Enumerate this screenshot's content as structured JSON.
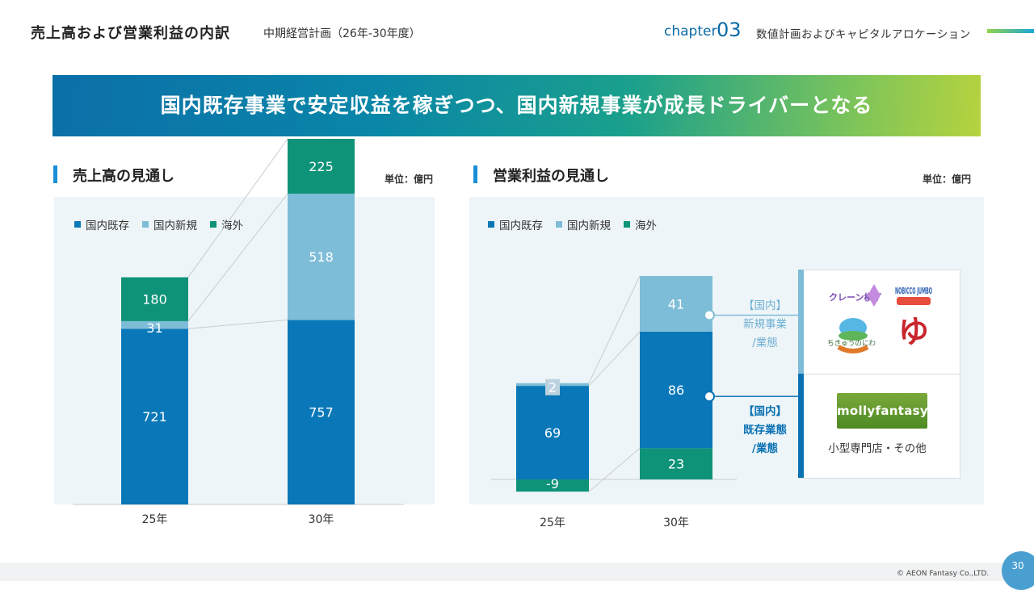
{
  "header": {
    "title": "売上高および営業利益の内訳",
    "subtitle": "中期経営計画（26年-30年度）",
    "chapter_word": "chapter",
    "chapter_num": "03",
    "section": "数値計画およびキャピタルアロケーション"
  },
  "banner": {
    "text": "国内既存事業で安定収益を稼ぎつつ、国内新規事業が成長ドライバーとなる"
  },
  "colors": {
    "domestic_existing": "#0a78b8",
    "domestic_new": "#7ebdd8",
    "overseas": "#0e9379"
  },
  "legend": [
    "国内既存",
    "国内新規",
    "海外"
  ],
  "sales_panel": {
    "title": "売上高の見通し",
    "unit": "単位：億円"
  },
  "profit_panel": {
    "title": "営業利益の見通し",
    "unit": "単位：億円"
  },
  "chart_data": [
    {
      "type": "bar",
      "stacked": true,
      "title": "売上高の見通し",
      "unit": "単位：億円",
      "categories": [
        "25年",
        "30年"
      ],
      "series": [
        {
          "name": "国内既存",
          "values": [
            721,
            757
          ]
        },
        {
          "name": "国内新規",
          "values": [
            31,
            518
          ]
        },
        {
          "name": "海外",
          "values": [
            180,
            225
          ]
        }
      ]
    },
    {
      "type": "bar",
      "stacked": true,
      "title": "営業利益の見通し",
      "unit": "単位：億円",
      "categories": [
        "25年",
        "30年"
      ],
      "series": [
        {
          "name": "国内既存",
          "values": [
            69,
            86
          ]
        },
        {
          "name": "国内新規",
          "values": [
            2,
            41
          ]
        },
        {
          "name": "海外",
          "values": [
            -9,
            23
          ]
        }
      ]
    }
  ],
  "callouts": {
    "new_label_1": "【国内】",
    "new_label_2": "新規事業",
    "new_label_3": "/業態",
    "existing_label_1": "【国内】",
    "existing_label_2": "既存業態",
    "existing_label_3": "/業態",
    "logos_top": [
      "クレーン横丁",
      "NOBICCO JUMBO",
      "ちきゅうのにわ",
      "ゆ"
    ],
    "logo_bottom": "mollyfantasy",
    "small_shop": "小型専門店・その他"
  },
  "footer": {
    "copyright": "© AEON Fantasy Co.,LTD.",
    "page": "30"
  }
}
